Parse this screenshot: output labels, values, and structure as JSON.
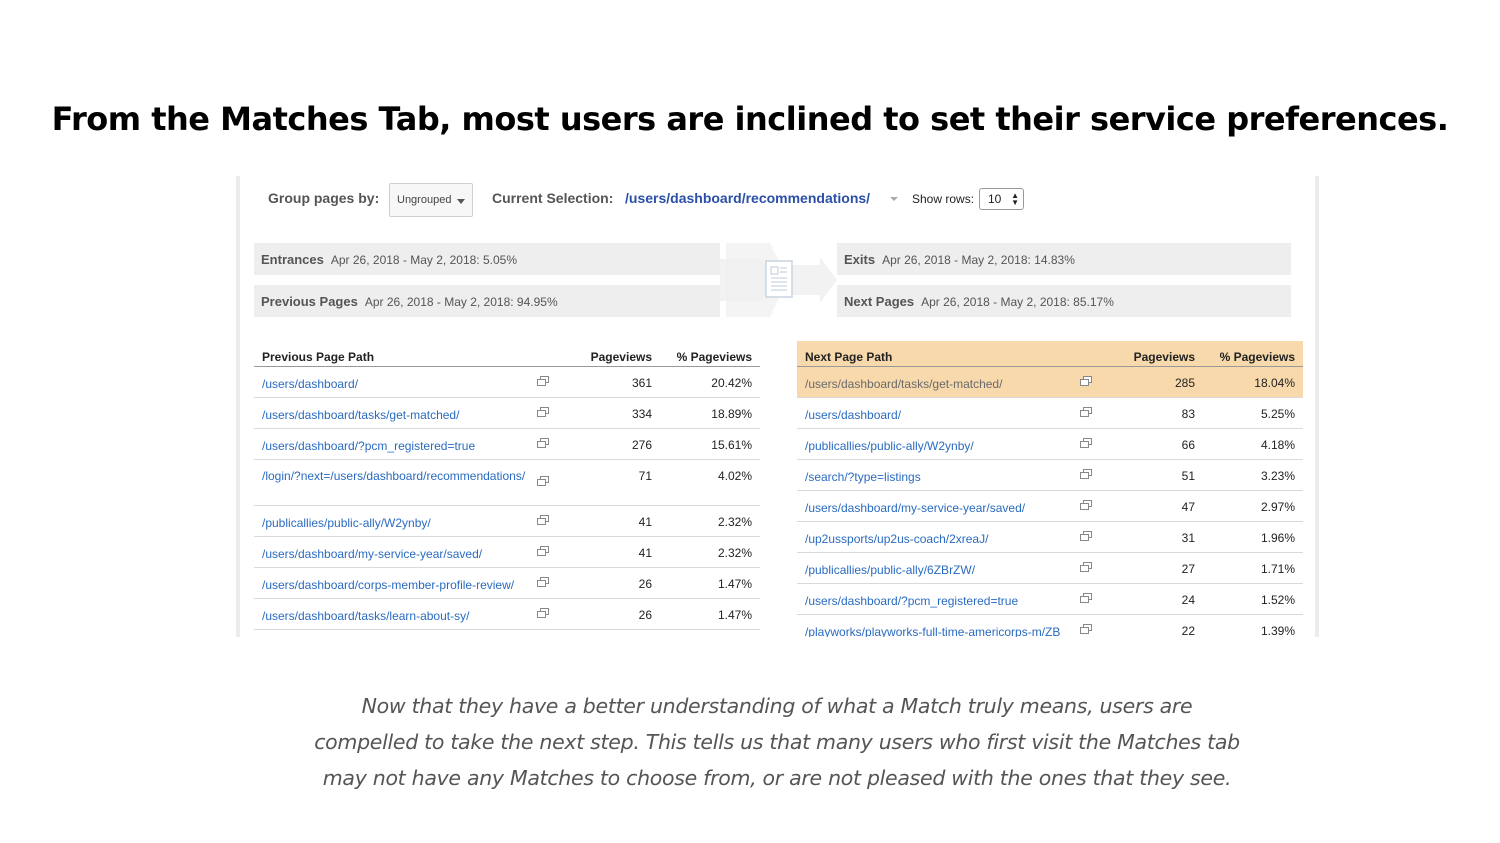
{
  "title": "From the Matches Tab, most users are inclined to set their service preferences.",
  "toolbar": {
    "group_label": "Group pages by:",
    "group_value": "Ungrouped",
    "current_selection_label": "Current Selection:",
    "current_selection_value": "/users/dashboard/recommendations/",
    "show_rows_label": "Show rows:",
    "show_rows_value": "10"
  },
  "summary": {
    "entrances": {
      "label": "Entrances",
      "value": "Apr 26, 2018 - May 2, 2018: 5.05%"
    },
    "previous_pages": {
      "label": "Previous Pages",
      "value": "Apr 26, 2018 - May 2, 2018: 94.95%"
    },
    "exits": {
      "label": "Exits",
      "value": "Apr 26, 2018 - May 2, 2018: 14.83%"
    },
    "next_pages": {
      "label": "Next Pages",
      "value": "Apr 26, 2018 - May 2, 2018: 85.17%"
    }
  },
  "previous_table": {
    "headers": {
      "path": "Previous Page Path",
      "pageviews": "Pageviews",
      "pct": "% Pageviews"
    },
    "rows": [
      {
        "path": "/users/dashboard/",
        "pageviews": "361",
        "pct": "20.42%"
      },
      {
        "path": "/users/dashboard/tasks/get-matched/",
        "pageviews": "334",
        "pct": "18.89%"
      },
      {
        "path": "/users/dashboard/?pcm_registered=true",
        "pageviews": "276",
        "pct": "15.61%"
      },
      {
        "path": "/login/?next=/users/dashboard/recommendations/",
        "pageviews": "71",
        "pct": "4.02%"
      },
      {
        "path": "/publicallies/public-ally/W2ynby/",
        "pageviews": "41",
        "pct": "2.32%"
      },
      {
        "path": "/users/dashboard/my-service-year/saved/",
        "pageviews": "41",
        "pct": "2.32%"
      },
      {
        "path": "/users/dashboard/corps-member-profile-review/",
        "pageviews": "26",
        "pct": "1.47%"
      },
      {
        "path": "/users/dashboard/tasks/learn-about-sy/",
        "pageviews": "26",
        "pct": "1.47%"
      }
    ]
  },
  "next_table": {
    "headers": {
      "path": "Next Page Path",
      "pageviews": "Pageviews",
      "pct": "% Pageviews"
    },
    "rows": [
      {
        "path": "/users/dashboard/tasks/get-matched/",
        "pageviews": "285",
        "pct": "18.04%"
      },
      {
        "path": "/users/dashboard/",
        "pageviews": "83",
        "pct": "5.25%"
      },
      {
        "path": "/publicallies/public-ally/W2ynby/",
        "pageviews": "66",
        "pct": "4.18%"
      },
      {
        "path": "/search/?type=listings",
        "pageviews": "51",
        "pct": "3.23%"
      },
      {
        "path": "/users/dashboard/my-service-year/saved/",
        "pageviews": "47",
        "pct": "2.97%"
      },
      {
        "path": "/up2ussports/up2us-coach/2xreaJ/",
        "pageviews": "31",
        "pct": "1.96%"
      },
      {
        "path": "/publicallies/public-ally/6ZBrZW/",
        "pageviews": "27",
        "pct": "1.71%"
      },
      {
        "path": "/users/dashboard/?pcm_registered=true",
        "pageviews": "24",
        "pct": "1.52%"
      },
      {
        "path": "/playworks/playworks-full-time-americorps-m/ZB",
        "pageviews": "22",
        "pct": "1.39%"
      }
    ]
  },
  "caption_lines": [
    "Now that they have a better understanding of what a Match truly means, users are",
    "compelled to take the next step. This tells us that many users who first visit the Matches tab",
    "may not have any Matches to choose from, or are not pleased with the ones that they see."
  ],
  "colors": {
    "link": "#2a6bc1",
    "highlight": "#f7d9ac",
    "selection": "#2b4fa8"
  },
  "icons": {
    "row_link": "open-in-new-window-icon",
    "flow": "page-flow-icon"
  }
}
